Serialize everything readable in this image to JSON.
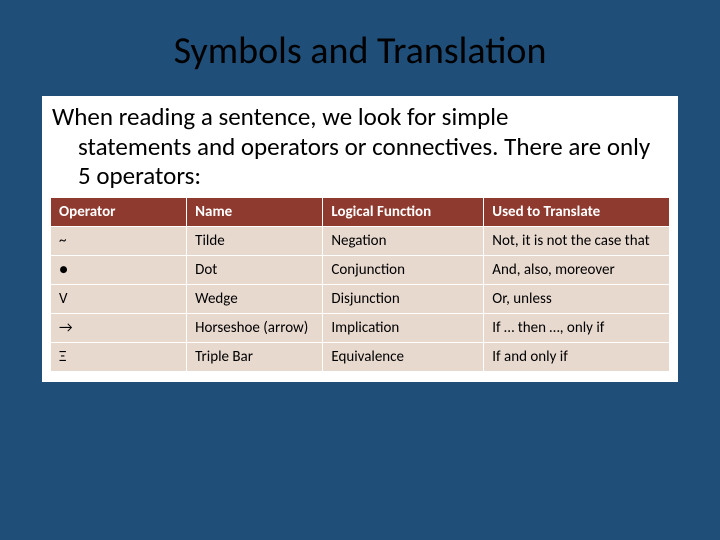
{
  "slide": {
    "title": "Symbols and Translation",
    "intro_line1": "When reading a sentence, we look for simple",
    "intro_line2": "statements and operators or connectives. There are only 5 operators:",
    "background_color": "#1f4e79",
    "content_background": "#ffffff"
  },
  "table": {
    "type": "table",
    "header_bg": "#8e3a2f",
    "header_fg": "#ffffff",
    "cell_bg": "#e8d9cf",
    "cell_fg": "#000000",
    "border_color": "#ffffff",
    "header_fontsize": 15,
    "cell_fontsize": 15,
    "symbol_fontsize": 22,
    "col_widths_pct": [
      22,
      22,
      26,
      30
    ],
    "columns": [
      "Operator",
      "Name",
      "Logical Function",
      "Used to Translate"
    ],
    "rows": [
      {
        "symbol": "~",
        "name": "Tilde",
        "function": "Negation",
        "translate": "Not, it is not the case that"
      },
      {
        "symbol": "●",
        "name": "Dot",
        "function": "Conjunction",
        "translate": "And, also, moreover"
      },
      {
        "symbol": "V",
        "name": "Wedge",
        "function": "Disjunction",
        "translate": "Or, unless"
      },
      {
        "symbol": "→",
        "name": "Horseshoe (arrow)",
        "function": "Implication",
        "translate": "If … then …, only if"
      },
      {
        "symbol": "Ξ",
        "name": "Triple Bar",
        "function": "Equivalence",
        "translate": "If and only if"
      }
    ]
  }
}
